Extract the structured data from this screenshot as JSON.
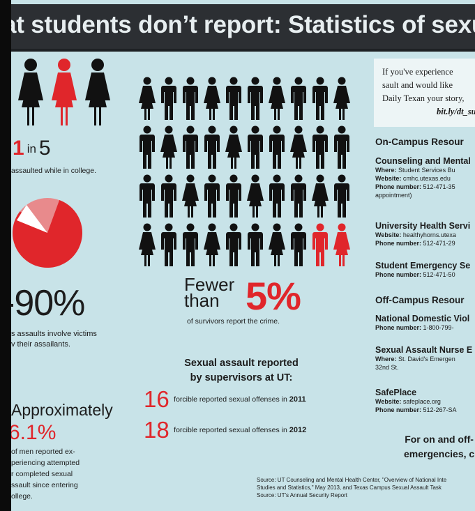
{
  "title": "at students don’t report: Statistics of sexual assa",
  "left": {
    "ratio_num": "1",
    "ratio_in": "in",
    "ratio_den": "5",
    "ratio_caption": "assaulted while in college.",
    "pie_percent": 80,
    "pct90": "-90%",
    "pct90_caption_1": "s assaults involve victims",
    "pct90_caption_2": "v their assailants.",
    "approx_label": "Approximately",
    "pct61": "6.1%",
    "pct61_caption_1": "of men reported ex-",
    "pct61_caption_2": "periencing attempted",
    "pct61_caption_3": "r completed sexual",
    "pct61_caption_4": "ssault since entering",
    "pct61_caption_5": "ollege."
  },
  "middle": {
    "fewer_1": "Fewer",
    "fewer_2": "than",
    "five_pct": "5%",
    "fewer_caption": "of survivors report the crime.",
    "supervisors_1": "Sexual assault reported",
    "supervisors_2": "by supervisors at UT:",
    "stat1_num": "16",
    "stat1_txt": "forcible reported sexual offenses in",
    "stat1_year": "2011",
    "stat2_num": "18",
    "stat2_txt": "forcible reported sexual offenses in",
    "stat2_year": "2012",
    "people_total": 40,
    "people_reporting": 2
  },
  "right": {
    "story_1": "If you've experience",
    "story_2": "sault and would like",
    "story_3": "Daily Texan your story,",
    "story_link": "bit.ly/dt_su",
    "on_campus": "On-Campus Resour",
    "counseling": "Counseling and Mental",
    "counseling_where_k": "Where:",
    "counseling_where_v": "Student Services Bu",
    "counseling_web_k": "Website:",
    "counseling_web_v": "cmhc.utexas.edu",
    "counseling_phone_k": "Phone number:",
    "counseling_phone_v": "512-471-35",
    "counseling_appt": "appointment)",
    "uhs": "University Health Servi",
    "uhs_web_k": "Website:",
    "uhs_web_v": "healthyhorns.utexa",
    "uhs_phone_k": "Phone number:",
    "uhs_phone_v": "512-471-29",
    "sem": "Student Emergency Se",
    "sem_phone_k": "Phone number:",
    "sem_phone_v": "512-471-50",
    "off_campus": "Off-Campus Resour",
    "ndv": "National Domestic Viol",
    "ndv_phone_k": "Phone number:",
    "ndv_phone_v": "1-800-799-",
    "sane": "Sexual Assault Nurse E",
    "sane_where_k": "Where:",
    "sane_where_v": "St. David's Emergen",
    "sane_addr": "32nd St.",
    "safeplace": "SafePlace",
    "safeplace_web_k": "Website:",
    "safeplace_web_v": "safeplace.org",
    "safeplace_phone_k": "Phone number:",
    "safeplace_phone_v": "512-267-SA",
    "emerg_1": "For on and off-",
    "emerg_2": "emergencies, c"
  },
  "source": {
    "line1": "Source: UT Counseling and Mental Health Center, \"Overview of National Inte",
    "line2": "Studies and Statistics,\" May 2013, and Texas Campus Sexual Assault Task",
    "line3": "Source: UT's Annual Security Report"
  },
  "colors": {
    "red": "#e0262b",
    "dark": "#1c1c1c",
    "panel": "#c8e3e8",
    "band": "#2c2f33"
  }
}
